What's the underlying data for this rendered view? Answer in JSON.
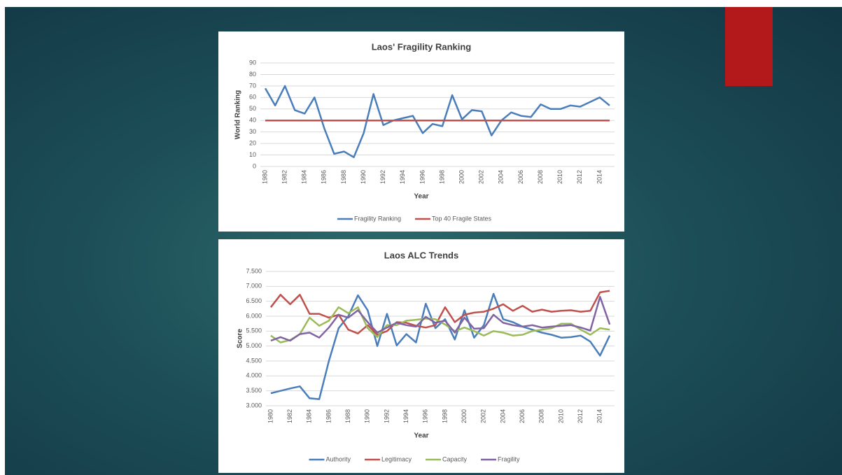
{
  "chart_data": [
    {
      "type": "line",
      "title": "Laos' Fragility Ranking",
      "xlabel": "Year",
      "ylabel": "World Ranking",
      "categories": [
        "1980",
        null,
        "1982",
        null,
        "1984",
        null,
        "1986",
        null,
        "1988",
        null,
        "1990",
        null,
        "1992",
        null,
        "1994",
        null,
        "1996",
        null,
        "1998",
        null,
        "2000",
        null,
        "2002",
        null,
        "2004",
        null,
        "2006",
        null,
        "2008",
        null,
        "2010",
        null,
        "2012",
        null,
        "2014",
        null
      ],
      "series": [
        {
          "name": "Fragility Ranking",
          "color": "#4a7ebb",
          "values": [
            68,
            53,
            70,
            49,
            46,
            60,
            33,
            11,
            13,
            8,
            29,
            63,
            36,
            40,
            42,
            44,
            29,
            37,
            35,
            62,
            41,
            49,
            48,
            27,
            40,
            47,
            44,
            43,
            54,
            50,
            50,
            53,
            52,
            56,
            60,
            53
          ]
        },
        {
          "name": "Top 40 Fragile States",
          "color": "#c0504d",
          "values": [
            40,
            40,
            40,
            40,
            40,
            40,
            40,
            40,
            40,
            40,
            40,
            40,
            40,
            40,
            40,
            40,
            40,
            40,
            40,
            40,
            40,
            40,
            40,
            40,
            40,
            40,
            40,
            40,
            40,
            40,
            40,
            40,
            40,
            40,
            40,
            40
          ]
        }
      ],
      "ylim": [
        0,
        90
      ],
      "yticks": [
        0,
        10,
        20,
        30,
        40,
        50,
        60,
        70,
        80,
        90
      ],
      "grid": true,
      "legend": "bottom"
    },
    {
      "type": "line",
      "title": "Laos ALC Trends",
      "xlabel": "Year",
      "ylabel": "Score",
      "categories": [
        "1980",
        null,
        "1982",
        null,
        "1984",
        null,
        "1986",
        null,
        "1988",
        null,
        "1990",
        null,
        "1992",
        null,
        "1994",
        null,
        "1996",
        null,
        "1998",
        null,
        "2000",
        null,
        "2002",
        null,
        "2004",
        null,
        "2006",
        null,
        "2008",
        null,
        "2010",
        null,
        "2012",
        null,
        "2014",
        null
      ],
      "series": [
        {
          "name": "Authority",
          "color": "#4a7ebb",
          "values": [
            3.42,
            3.5,
            3.58,
            3.65,
            3.25,
            3.22,
            4.5,
            5.6,
            6.0,
            6.7,
            6.2,
            5.0,
            6.08,
            5.02,
            5.4,
            5.12,
            6.42,
            5.6,
            5.9,
            5.22,
            6.2,
            5.28,
            5.7,
            6.75,
            5.9,
            5.8,
            5.65,
            5.55,
            5.45,
            5.38,
            5.28,
            5.3,
            5.35,
            5.15,
            4.68,
            5.35
          ]
        },
        {
          "name": "Legitimacy",
          "color": "#c0504d",
          "values": [
            6.3,
            6.72,
            6.4,
            6.72,
            6.08,
            6.08,
            5.95,
            6.05,
            5.55,
            5.42,
            5.7,
            5.38,
            5.5,
            5.8,
            5.78,
            5.68,
            5.62,
            5.7,
            6.3,
            5.8,
            6.05,
            6.12,
            6.15,
            6.25,
            6.4,
            6.18,
            6.35,
            6.15,
            6.22,
            6.15,
            6.18,
            6.2,
            6.15,
            6.18,
            6.8,
            6.85
          ]
        },
        {
          "name": "Capacity",
          "color": "#9bbb59",
          "values": [
            5.35,
            5.12,
            5.2,
            5.4,
            5.95,
            5.68,
            5.85,
            6.3,
            6.1,
            6.3,
            5.6,
            5.3,
            5.7,
            5.7,
            5.85,
            5.88,
            5.92,
            5.9,
            5.72,
            5.5,
            5.62,
            5.5,
            5.35,
            5.5,
            5.45,
            5.35,
            5.38,
            5.5,
            5.55,
            5.6,
            5.75,
            5.75,
            5.55,
            5.38,
            5.6,
            5.55
          ]
        },
        {
          "name": "Fragility",
          "color": "#8064a2",
          "values": [
            5.18,
            5.3,
            5.18,
            5.4,
            5.45,
            5.28,
            5.62,
            6.05,
            5.95,
            6.2,
            5.8,
            5.45,
            5.62,
            5.78,
            5.7,
            5.65,
            5.98,
            5.78,
            5.85,
            5.45,
            5.95,
            5.58,
            5.6,
            6.05,
            5.78,
            5.7,
            5.65,
            5.7,
            5.62,
            5.65,
            5.68,
            5.7,
            5.62,
            5.52,
            6.65,
            5.72
          ]
        }
      ],
      "ylim": [
        3,
        7.5
      ],
      "yticks": [
        {
          "value": 3,
          "label": "3.000"
        },
        {
          "value": 3.5,
          "label": "3.500"
        },
        {
          "value": 4,
          "label": "4.000"
        },
        {
          "value": 4.5,
          "label": "4.500"
        },
        {
          "value": 5,
          "label": "5.000"
        },
        {
          "value": 5.5,
          "label": "5.500"
        },
        {
          "value": 6,
          "label": "6.000"
        },
        {
          "value": 6.5,
          "label": "6.500"
        },
        {
          "value": 7,
          "label": "7.000"
        },
        {
          "value": 7.5,
          "label": "7.500"
        }
      ],
      "grid": true,
      "legend": "bottom"
    }
  ]
}
